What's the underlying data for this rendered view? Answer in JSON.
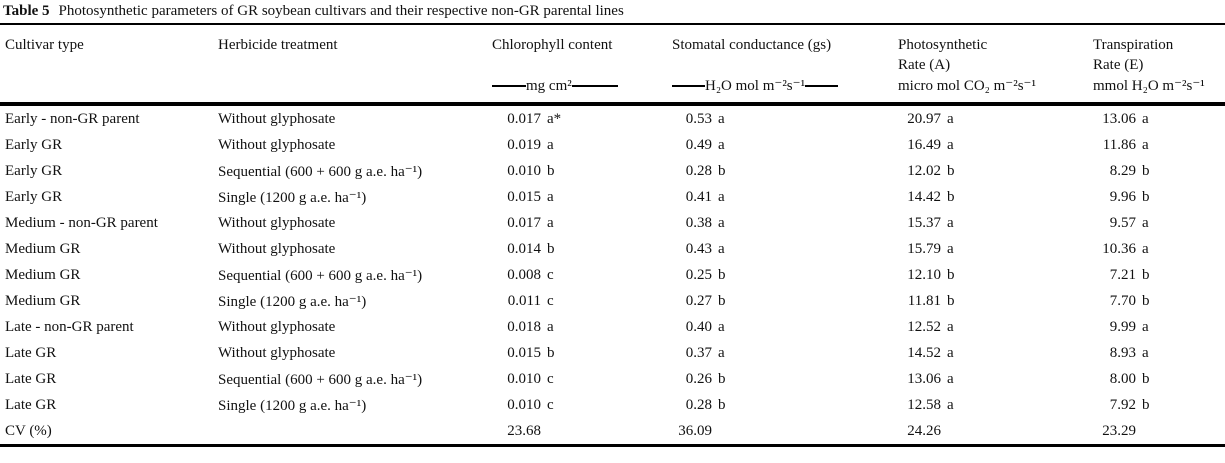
{
  "caption": {
    "label": "Table 5",
    "text": "Photosynthetic parameters of GR soybean cultivars and their respective non-GR parental lines"
  },
  "columns": {
    "cultivar": {
      "title": "Cultivar type"
    },
    "treatment": {
      "title": "Herbicide treatment"
    },
    "chlorophyll": {
      "title": "Chlorophyll content",
      "unit": "mg cm²"
    },
    "stomatal": {
      "title": "Stomatal conductance (gs)",
      "unit": "H₂O mol m⁻²s⁻¹"
    },
    "photosynthetic": {
      "title_line1": "Photosynthetic",
      "title_line2": "Rate (A)",
      "unit": "micro mol CO₂ m⁻²s⁻¹"
    },
    "transpiration": {
      "title_line1": "Transpiration",
      "title_line2": "Rate (E)",
      "unit": "mmol H₂O m⁻²s⁻¹"
    }
  },
  "rows": [
    {
      "cultivar": "Early - non-GR parent",
      "treatment": "Without glyphosate",
      "chl": "0.017",
      "chl_sig": "a*",
      "gs": "0.53",
      "gs_sig": "a",
      "a": "20.97",
      "a_sig": "a",
      "e": "13.06",
      "e_sig": "a"
    },
    {
      "cultivar": "Early GR",
      "treatment": "Without glyphosate",
      "chl": "0.019",
      "chl_sig": "a",
      "gs": "0.49",
      "gs_sig": "a",
      "a": "16.49",
      "a_sig": "a",
      "e": "11.86",
      "e_sig": "a"
    },
    {
      "cultivar": "Early GR",
      "treatment": "Sequential (600 + 600 g a.e. ha⁻¹)",
      "chl": "0.010",
      "chl_sig": "b",
      "gs": "0.28",
      "gs_sig": "b",
      "a": "12.02",
      "a_sig": "b",
      "e": "8.29",
      "e_sig": "b"
    },
    {
      "cultivar": "Early GR",
      "treatment": "Single (1200 g a.e. ha⁻¹)",
      "chl": "0.015",
      "chl_sig": "a",
      "gs": "0.41",
      "gs_sig": "a",
      "a": "14.42",
      "a_sig": "b",
      "e": "9.96",
      "e_sig": "b"
    },
    {
      "cultivar": "Medium - non-GR parent",
      "treatment": "Without glyphosate",
      "chl": "0.017",
      "chl_sig": "a",
      "gs": "0.38",
      "gs_sig": "a",
      "a": "15.37",
      "a_sig": "a",
      "e": "9.57",
      "e_sig": "a"
    },
    {
      "cultivar": "Medium GR",
      "treatment": "Without glyphosate",
      "chl": "0.014",
      "chl_sig": "b",
      "gs": "0.43",
      "gs_sig": "a",
      "a": "15.79",
      "a_sig": "a",
      "e": "10.36",
      "e_sig": "a"
    },
    {
      "cultivar": "Medium GR",
      "treatment": "Sequential (600 + 600 g a.e. ha⁻¹)",
      "chl": "0.008",
      "chl_sig": "c",
      "gs": "0.25",
      "gs_sig": "b",
      "a": "12.10",
      "a_sig": "b",
      "e": "7.21",
      "e_sig": "b"
    },
    {
      "cultivar": "Medium GR",
      "treatment": "Single (1200 g a.e. ha⁻¹)",
      "chl": "0.011",
      "chl_sig": "c",
      "gs": "0.27",
      "gs_sig": "b",
      "a": "11.81",
      "a_sig": "b",
      "e": "7.70",
      "e_sig": "b"
    },
    {
      "cultivar": "Late - non-GR parent",
      "treatment": "Without glyphosate",
      "chl": "0.018",
      "chl_sig": "a",
      "gs": "0.40",
      "gs_sig": "a",
      "a": "12.52",
      "a_sig": "a",
      "e": "9.99",
      "e_sig": "a"
    },
    {
      "cultivar": "Late GR",
      "treatment": "Without glyphosate",
      "chl": "0.015",
      "chl_sig": "b",
      "gs": "0.37",
      "gs_sig": "a",
      "a": "14.52",
      "a_sig": "a",
      "e": "8.93",
      "e_sig": "a"
    },
    {
      "cultivar": "Late GR",
      "treatment": "Sequential (600 + 600 g a.e. ha⁻¹)",
      "chl": "0.010",
      "chl_sig": "c",
      "gs": "0.26",
      "gs_sig": "b",
      "a": "13.06",
      "a_sig": "a",
      "e": "8.00",
      "e_sig": "b"
    },
    {
      "cultivar": "Late GR",
      "treatment": "Single (1200 g a.e. ha⁻¹)",
      "chl": "0.010",
      "chl_sig": "c",
      "gs": "0.28",
      "gs_sig": "b",
      "a": "12.58",
      "a_sig": "a",
      "e": "7.92",
      "e_sig": "b"
    }
  ],
  "cv": {
    "label": "CV (%)",
    "chl": "23.68",
    "gs": "36.09",
    "a": "24.26",
    "e": "23.29"
  }
}
